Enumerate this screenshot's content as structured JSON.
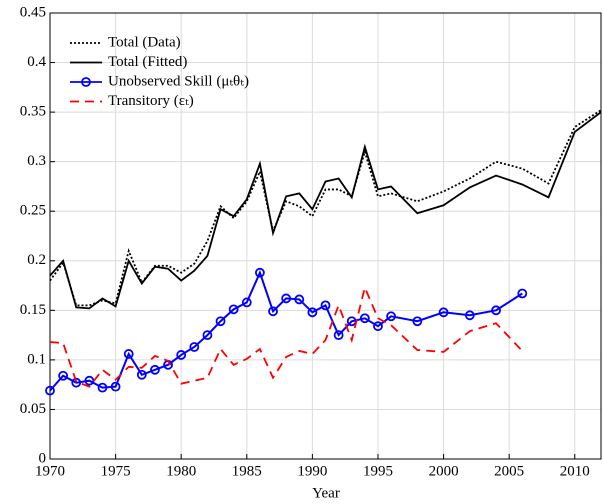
{
  "chart_data": {
    "type": "line",
    "xlabel": "Year",
    "xlim": [
      1970,
      2012
    ],
    "xticks": [
      1970,
      1975,
      1980,
      1985,
      1990,
      1995,
      2000,
      2005,
      2010
    ],
    "ylim": [
      0,
      0.45
    ],
    "yticks": [
      0,
      0.05,
      0.1,
      0.15,
      0.2,
      0.25,
      0.3,
      0.35,
      0.4,
      0.45
    ],
    "grid": true,
    "legend": "upper left",
    "series": [
      {
        "name": "Total (Data)",
        "color": "#000000",
        "style": "dotted",
        "marker": "none",
        "x": [
          1970,
          1971,
          1972,
          1973,
          1974,
          1975,
          1976,
          1977,
          1978,
          1979,
          1980,
          1981,
          1982,
          1983,
          1984,
          1985,
          1986,
          1987,
          1988,
          1989,
          1990,
          1991,
          1992,
          1993,
          1994,
          1995,
          1996,
          1998,
          2000,
          2002,
          2004,
          2006,
          2008,
          2010,
          2012
        ],
        "values": [
          0.18,
          0.198,
          0.155,
          0.155,
          0.16,
          0.157,
          0.21,
          0.178,
          0.195,
          0.195,
          0.188,
          0.197,
          0.22,
          0.255,
          0.243,
          0.26,
          0.29,
          0.23,
          0.26,
          0.255,
          0.245,
          0.272,
          0.272,
          0.265,
          0.31,
          0.265,
          0.268,
          0.26,
          0.27,
          0.283,
          0.3,
          0.293,
          0.278,
          0.335,
          0.352
        ]
      },
      {
        "name": "Total (Fitted)",
        "color": "#000000",
        "style": "solid",
        "marker": "none",
        "x": [
          1970,
          1971,
          1972,
          1973,
          1974,
          1975,
          1976,
          1977,
          1978,
          1979,
          1980,
          1981,
          1982,
          1983,
          1984,
          1985,
          1986,
          1987,
          1988,
          1989,
          1990,
          1991,
          1992,
          1993,
          1994,
          1995,
          1996,
          1998,
          2000,
          2002,
          2004,
          2006,
          2008,
          2010,
          2012
        ],
        "values": [
          0.185,
          0.2,
          0.153,
          0.152,
          0.162,
          0.154,
          0.2,
          0.177,
          0.194,
          0.192,
          0.18,
          0.19,
          0.205,
          0.252,
          0.245,
          0.262,
          0.298,
          0.228,
          0.265,
          0.268,
          0.252,
          0.28,
          0.283,
          0.264,
          0.315,
          0.272,
          0.275,
          0.248,
          0.256,
          0.274,
          0.286,
          0.277,
          0.264,
          0.33,
          0.35
        ]
      },
      {
        "name": "Unobserved Skill (μₜθₜ)",
        "color": "#0000ff",
        "style": "solid",
        "marker": "circle",
        "x": [
          1970,
          1971,
          1972,
          1973,
          1974,
          1975,
          1976,
          1977,
          1978,
          1979,
          1980,
          1981,
          1982,
          1983,
          1984,
          1985,
          1986,
          1987,
          1988,
          1989,
          1990,
          1991,
          1992,
          1993,
          1994,
          1995,
          1996,
          1998,
          2000,
          2002,
          2004,
          2006
        ],
        "values": [
          0.069,
          0.084,
          0.077,
          0.079,
          0.072,
          0.073,
          0.106,
          0.085,
          0.09,
          0.095,
          0.105,
          0.113,
          0.125,
          0.139,
          0.151,
          0.158,
          0.188,
          0.149,
          0.162,
          0.161,
          0.148,
          0.155,
          0.125,
          0.139,
          0.142,
          0.134,
          0.144,
          0.139,
          0.148,
          0.145,
          0.15,
          0.167
        ]
      },
      {
        "name": "Transitory (εₜ)",
        "color": "#ff0000",
        "style": "dashed",
        "marker": "none",
        "x": [
          1970,
          1971,
          1972,
          1973,
          1974,
          1975,
          1976,
          1977,
          1978,
          1979,
          1980,
          1981,
          1982,
          1983,
          1984,
          1985,
          1986,
          1987,
          1988,
          1989,
          1990,
          1991,
          1992,
          1993,
          1994,
          1995,
          1996,
          1998,
          2000,
          2002,
          2004,
          2006
        ],
        "values": [
          0.118,
          0.117,
          0.078,
          0.073,
          0.09,
          0.08,
          0.093,
          0.092,
          0.104,
          0.099,
          0.076,
          0.079,
          0.082,
          0.111,
          0.095,
          0.101,
          0.111,
          0.082,
          0.103,
          0.109,
          0.106,
          0.12,
          0.155,
          0.12,
          0.173,
          0.142,
          0.135,
          0.11,
          0.108,
          0.129,
          0.137,
          0.109
        ]
      }
    ]
  }
}
